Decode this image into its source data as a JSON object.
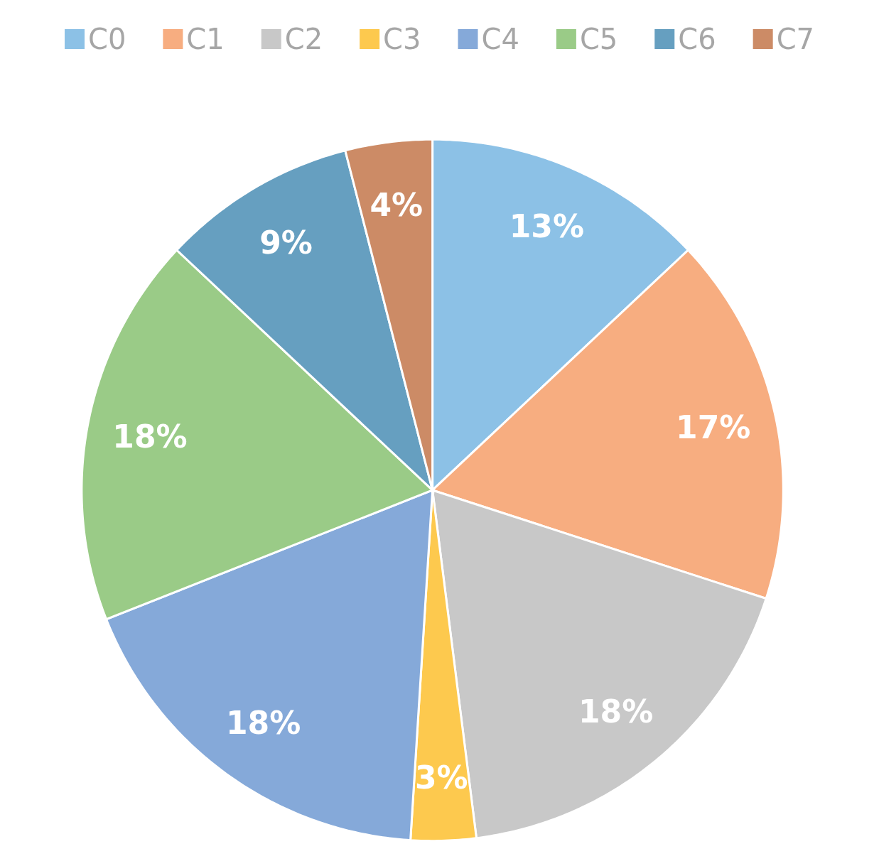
{
  "chart_data": {
    "type": "pie",
    "categories": [
      "C0",
      "C1",
      "C2",
      "C3",
      "C4",
      "C5",
      "C6",
      "C7"
    ],
    "values": [
      13,
      17,
      18,
      3,
      18,
      18,
      9,
      4
    ],
    "colors": [
      "#8cc1e6",
      "#f7ad80",
      "#c8c8c8",
      "#fdc94e",
      "#85a9d9",
      "#9acb87",
      "#669fc0",
      "#cc8b66"
    ],
    "value_labels": [
      "13%",
      "17%",
      "18%",
      "3%",
      "18%",
      "18%",
      "9%",
      "4%"
    ],
    "legend": "top"
  }
}
